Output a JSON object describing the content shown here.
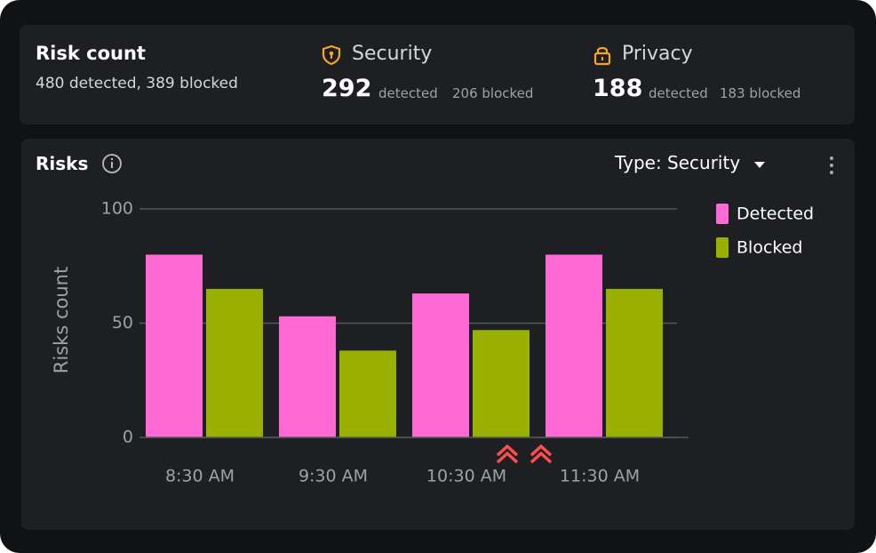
{
  "header": {
    "risk_count": {
      "title": "Risk count",
      "summary": "480 detected, 389 blocked"
    },
    "security": {
      "title": "Security",
      "count": 292,
      "detected_label": "detected",
      "blocked": "206 blocked"
    },
    "privacy": {
      "title": "Privacy",
      "count": 188,
      "detected_label": "detected",
      "blocked": "183 blocked"
    }
  },
  "panel": {
    "title": "Risks",
    "filter": "Type: Security"
  },
  "chart_data": {
    "type": "bar",
    "y_label": "Risks count",
    "categories": [
      "8:30 AM",
      "9:30 AM",
      "10:30 AM",
      "11:30 AM"
    ],
    "series": [
      {
        "name": "Detected",
        "color": "#ff69d4",
        "values": [
          80,
          53,
          63,
          80
        ]
      },
      {
        "name": "Blocked",
        "color": "#99b000",
        "values": [
          65,
          38,
          47,
          65
        ]
      }
    ],
    "ylim": [
      0,
      100
    ],
    "yticks": [
      0,
      50,
      100
    ],
    "grid": true,
    "legend": "right"
  }
}
